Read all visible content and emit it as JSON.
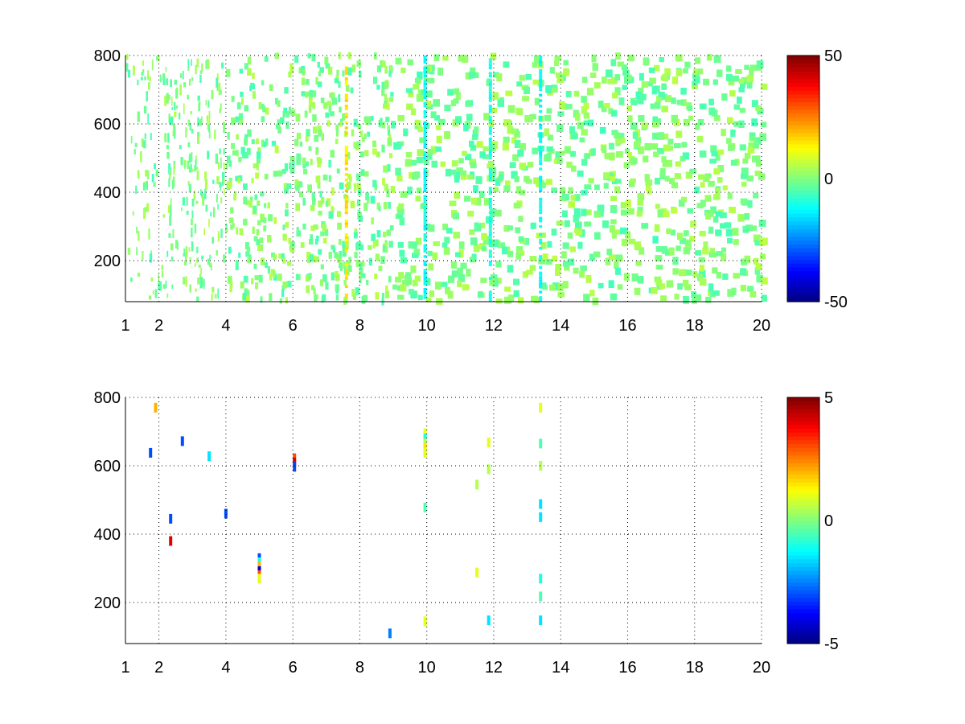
{
  "chart_data": [
    {
      "type": "heatmap",
      "title": "",
      "xlabel": "",
      "ylabel": "",
      "xlim": [
        1,
        20
      ],
      "ylim": [
        80,
        800
      ],
      "xticks": [
        1,
        2,
        4,
        6,
        8,
        10,
        12,
        14,
        16,
        18,
        20
      ],
      "yticks": [
        200,
        400,
        600,
        800
      ],
      "xtick_labels": [
        "1",
        "2",
        "4",
        "6",
        "8",
        "10",
        "12",
        "14",
        "16",
        "18",
        "20"
      ],
      "ytick_labels": [
        "200",
        "400",
        "600",
        "800"
      ],
      "grid": true,
      "grid_style": "dotted",
      "colormap": "jet",
      "clim": [
        -50,
        50
      ],
      "colorbar": {
        "ticks": [
          50,
          0,
          -50
        ],
        "tick_labels": [
          "50",
          "0",
          "-50"
        ],
        "placement": "right"
      },
      "description_fill": "sparse cells mostly near 0; strong vertical bands at x≈7.6, 10, 12, 13.4",
      "values_note": "dense scatter of small values near 0 (cyan to yellow); strong stripes",
      "stripes": [
        {
          "x": 7.6,
          "value": 15
        },
        {
          "x": 9.95,
          "value": -12
        },
        {
          "x": 11.9,
          "value": -10
        },
        {
          "x": 13.4,
          "value": -12
        }
      ]
    },
    {
      "type": "heatmap",
      "title": "",
      "xlabel": "",
      "ylabel": "",
      "xlim": [
        1,
        20
      ],
      "ylim": [
        80,
        800
      ],
      "xticks": [
        1,
        2,
        4,
        6,
        8,
        10,
        12,
        14,
        16,
        18,
        20
      ],
      "yticks": [
        200,
        400,
        600,
        800
      ],
      "xtick_labels": [
        "1",
        "2",
        "4",
        "6",
        "8",
        "10",
        "12",
        "14",
        "16",
        "18",
        "20"
      ],
      "ytick_labels": [
        "200",
        "400",
        "600",
        "800"
      ],
      "grid": true,
      "grid_style": "dotted",
      "colormap": "jet",
      "clim": [
        -5,
        5
      ],
      "colorbar": {
        "ticks": [
          5,
          0,
          -5
        ],
        "tick_labels": [
          "5",
          "0",
          "-5"
        ],
        "placement": "right"
      },
      "points": [
        {
          "x": 1.75,
          "y": 638,
          "v": -3
        },
        {
          "x": 1.9,
          "y": 770,
          "v": 2
        },
        {
          "x": 2.35,
          "y": 445,
          "v": -3
        },
        {
          "x": 2.35,
          "y": 380,
          "v": 4
        },
        {
          "x": 2.7,
          "y": 672,
          "v": -3
        },
        {
          "x": 3.5,
          "y": 628,
          "v": -1.5
        },
        {
          "x": 4.0,
          "y": 460,
          "v": -3
        },
        {
          "x": 5.0,
          "y": 330,
          "v": -3
        },
        {
          "x": 5.0,
          "y": 318,
          "v": -1
        },
        {
          "x": 5.0,
          "y": 305,
          "v": 2
        },
        {
          "x": 5.0,
          "y": 292,
          "v": -4
        },
        {
          "x": 5.0,
          "y": 280,
          "v": 3
        },
        {
          "x": 5.0,
          "y": 270,
          "v": 1
        },
        {
          "x": 6.05,
          "y": 622,
          "v": 3
        },
        {
          "x": 6.05,
          "y": 610,
          "v": 4
        },
        {
          "x": 6.05,
          "y": 597,
          "v": -3
        },
        {
          "x": 8.9,
          "y": 110,
          "v": -2.5
        },
        {
          "x": 9.95,
          "y": 695,
          "v": 1
        },
        {
          "x": 9.95,
          "y": 680,
          "v": -1
        },
        {
          "x": 9.95,
          "y": 665,
          "v": 0.5
        },
        {
          "x": 9.95,
          "y": 650,
          "v": 1.5
        },
        {
          "x": 9.95,
          "y": 638,
          "v": 1
        },
        {
          "x": 9.95,
          "y": 478,
          "v": -0.5
        },
        {
          "x": 9.95,
          "y": 145,
          "v": 1
        },
        {
          "x": 11.5,
          "y": 545,
          "v": 0.5
        },
        {
          "x": 11.5,
          "y": 288,
          "v": 1
        },
        {
          "x": 11.85,
          "y": 668,
          "v": 1
        },
        {
          "x": 11.85,
          "y": 590,
          "v": 0.5
        },
        {
          "x": 11.85,
          "y": 148,
          "v": -1.5
        },
        {
          "x": 13.4,
          "y": 770,
          "v": 1
        },
        {
          "x": 13.4,
          "y": 665,
          "v": -0.5
        },
        {
          "x": 13.4,
          "y": 600,
          "v": 0.5
        },
        {
          "x": 13.4,
          "y": 488,
          "v": -1.5
        },
        {
          "x": 13.4,
          "y": 450,
          "v": -1.5
        },
        {
          "x": 13.4,
          "y": 270,
          "v": -1
        },
        {
          "x": 13.4,
          "y": 218,
          "v": -0.5
        },
        {
          "x": 13.4,
          "y": 148,
          "v": -1.5
        }
      ]
    }
  ]
}
